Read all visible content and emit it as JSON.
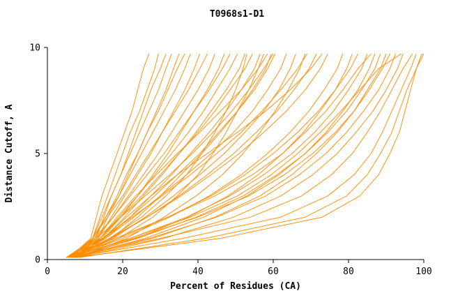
{
  "chart_data": {
    "type": "line",
    "title": "T0968s1-D1",
    "xlabel": "Percent of Residues (CA)",
    "ylabel": "Distance Cutoff, A",
    "xlim": [
      0,
      100
    ],
    "ylim": [
      0,
      10
    ],
    "x_ticks": [
      0,
      20,
      40,
      60,
      80,
      100
    ],
    "y_ticks": [
      0,
      5,
      10
    ],
    "grid": false,
    "legend": "none",
    "line_color": "#ff8c00",
    "axis_color": "#000000",
    "background": "#ffffff",
    "y_levels": [
      0.1,
      1,
      2,
      3,
      4,
      5,
      6,
      7,
      8,
      9,
      9.7
    ],
    "curves": [
      [
        6.0,
        11.5,
        13.0,
        14.5,
        16.5,
        18.5,
        20.5,
        22.5,
        24.0,
        25.5,
        27.0
      ],
      [
        6.5,
        12.0,
        14.0,
        16.0,
        18.0,
        20.0,
        22.0,
        24.5,
        26.5,
        28.5,
        29.5
      ],
      [
        7.0,
        13.0,
        15.0,
        17.0,
        19.5,
        21.5,
        23.5,
        25.5,
        27.5,
        30.0,
        31.5
      ],
      [
        5.5,
        12.0,
        14.5,
        17.0,
        19.5,
        22.0,
        24.5,
        27.0,
        29.5,
        31.5,
        33.0
      ],
      [
        7.5,
        13.5,
        16.0,
        19.0,
        21.5,
        24.0,
        26.5,
        29.0,
        31.5,
        33.5,
        35.0
      ],
      [
        6.0,
        12.5,
        15.5,
        18.5,
        21.0,
        24.0,
        26.5,
        29.5,
        32.0,
        34.5,
        36.5
      ],
      [
        6.5,
        12.0,
        15.5,
        19.0,
        22.0,
        25.0,
        28.0,
        31.0,
        34.0,
        36.5,
        38.0
      ],
      [
        7.0,
        13.5,
        17.0,
        20.5,
        24.0,
        27.5,
        30.5,
        33.5,
        36.5,
        39.0,
        40.5
      ],
      [
        5.5,
        12.0,
        16.0,
        20.0,
        23.5,
        27.0,
        30.5,
        34.0,
        37.5,
        40.5,
        42.5
      ],
      [
        6.0,
        13.0,
        17.5,
        21.5,
        25.5,
        29.5,
        33.0,
        36.5,
        40.0,
        43.0,
        44.5
      ],
      [
        7.5,
        14.5,
        19.5,
        24.0,
        28.0,
        32.0,
        35.5,
        39.0,
        42.5,
        45.5,
        47.0
      ],
      [
        5.0,
        12.5,
        17.5,
        22.0,
        26.5,
        31.0,
        35.0,
        39.0,
        43.0,
        46.5,
        48.5
      ],
      [
        6.5,
        14.0,
        19.0,
        24.0,
        28.5,
        33.0,
        37.5,
        41.5,
        45.0,
        48.5,
        50.5
      ],
      [
        7.0,
        15.0,
        20.5,
        25.5,
        30.5,
        35.0,
        39.5,
        43.5,
        47.5,
        51.0,
        52.5
      ],
      [
        5.5,
        14.0,
        19.5,
        25.0,
        30.0,
        35.0,
        40.0,
        44.5,
        48.5,
        52.5,
        54.5
      ],
      [
        6.0,
        15.5,
        22.0,
        27.5,
        33.0,
        38.0,
        43.0,
        47.5,
        51.5,
        55.0,
        56.5
      ],
      [
        7.5,
        17.0,
        24.0,
        30.0,
        35.5,
        41.0,
        46.0,
        50.5,
        54.5,
        58.0,
        59.5
      ],
      [
        6.5,
        15.0,
        22.0,
        28.5,
        34.5,
        40.5,
        45.5,
        50.5,
        55.0,
        58.5,
        60.5
      ],
      [
        8.0,
        14.0,
        18.5,
        23.5,
        29.0,
        34.5,
        40.5,
        46.0,
        51.5,
        56.0,
        58.5
      ],
      [
        6.0,
        16.5,
        25.0,
        31.5,
        37.0,
        41.0,
        44.5,
        47.5,
        50.0,
        52.0,
        53.0
      ],
      [
        7.0,
        19.0,
        28.0,
        34.5,
        40.0,
        44.0,
        47.5,
        50.5,
        53.5,
        56.0,
        57.5
      ],
      [
        5.0,
        13.0,
        19.5,
        26.0,
        32.5,
        38.5,
        44.0,
        49.0,
        53.5,
        57.5,
        60.0
      ],
      [
        6.0,
        15.5,
        23.0,
        30.0,
        37.0,
        43.5,
        49.5,
        54.5,
        58.5,
        62.0,
        63.5
      ],
      [
        7.0,
        17.5,
        26.0,
        33.5,
        40.5,
        47.0,
        52.5,
        57.5,
        61.5,
        64.5,
        66.0
      ],
      [
        8.0,
        21.0,
        31.0,
        39.5,
        46.5,
        52.0,
        56.5,
        60.5,
        64.0,
        67.0,
        68.5
      ],
      [
        5.5,
        14.5,
        22.5,
        30.5,
        38.0,
        45.0,
        51.5,
        57.0,
        62.0,
        66.5,
        69.0
      ],
      [
        6.5,
        17.0,
        26.5,
        35.0,
        42.5,
        49.5,
        55.5,
        61.0,
        65.5,
        69.5,
        71.5
      ],
      [
        8.5,
        15.0,
        21.0,
        27.5,
        34.5,
        42.5,
        50.5,
        58.0,
        64.5,
        70.0,
        73.0
      ],
      [
        6.0,
        16.5,
        26.5,
        35.5,
        43.5,
        51.0,
        57.5,
        63.5,
        68.5,
        72.5,
        74.5
      ],
      [
        6.5,
        20.0,
        32.5,
        43.0,
        51.5,
        58.5,
        64.5,
        69.5,
        73.5,
        77.0,
        78.5
      ],
      [
        7.5,
        23.5,
        37.5,
        48.0,
        56.0,
        62.5,
        68.0,
        72.5,
        76.5,
        79.5,
        81.0
      ],
      [
        5.5,
        19.0,
        32.0,
        43.5,
        52.5,
        60.0,
        66.5,
        72.0,
        76.5,
        80.5,
        82.5
      ],
      [
        6.0,
        22.0,
        37.0,
        48.5,
        57.5,
        65.0,
        71.0,
        76.0,
        80.0,
        83.5,
        85.0
      ],
      [
        7.0,
        26.0,
        41.5,
        53.0,
        61.5,
        68.5,
        74.0,
        78.5,
        82.5,
        85.5,
        87.0
      ],
      [
        6.5,
        24.0,
        39.5,
        52.0,
        61.0,
        68.5,
        74.5,
        79.5,
        83.5,
        87.0,
        88.5
      ],
      [
        7.5,
        28.0,
        44.5,
        56.5,
        65.0,
        71.5,
        77.0,
        81.5,
        85.0,
        88.5,
        90.0
      ],
      [
        5.5,
        23.0,
        40.0,
        53.5,
        63.0,
        70.5,
        76.5,
        81.5,
        85.5,
        89.0,
        91.0
      ],
      [
        6.5,
        27.0,
        45.0,
        58.0,
        67.0,
        74.0,
        79.5,
        84.0,
        88.0,
        91.0,
        92.5
      ],
      [
        8.0,
        31.0,
        49.5,
        62.0,
        70.5,
        77.0,
        82.0,
        86.5,
        90.0,
        93.0,
        94.5
      ],
      [
        6.0,
        22.0,
        38.0,
        50.5,
        59.5,
        66.5,
        72.5,
        78.0,
        83.0,
        88.0,
        94.0
      ],
      [
        6.0,
        30.0,
        54.0,
        67.5,
        75.5,
        81.0,
        85.0,
        88.5,
        91.5,
        94.5,
        97.0
      ],
      [
        7.0,
        36.0,
        62.0,
        74.5,
        81.5,
        86.0,
        89.0,
        91.5,
        94.0,
        96.5,
        98.0
      ],
      [
        8.5,
        42.0,
        68.5,
        79.5,
        85.0,
        88.5,
        91.5,
        93.5,
        95.5,
        98.0,
        100.0
      ],
      [
        7.5,
        46.0,
        73.0,
        83.0,
        88.0,
        91.0,
        93.5,
        95.0,
        96.5,
        98.0,
        99.5
      ],
      [
        5.0,
        18.0,
        32.0,
        44.5,
        54.5,
        62.5,
        68.5,
        74.0,
        78.5,
        82.5,
        86.0
      ]
    ]
  }
}
